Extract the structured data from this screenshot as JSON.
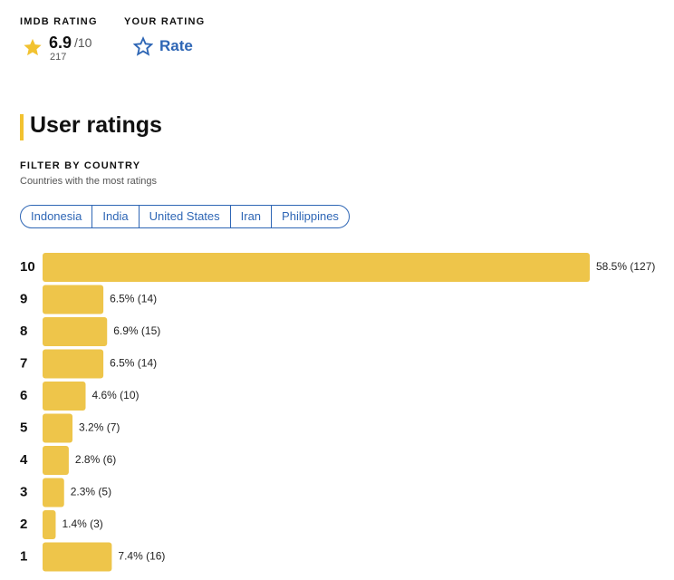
{
  "header": {
    "imdb_rating_label": "IMDb RATING",
    "rating": 6.9,
    "rating_max": "/10",
    "rating_count": 217,
    "your_rating_label": "YOUR RATING",
    "rate": "Rate"
  },
  "section": {
    "title": "User ratings",
    "filter_label": "FILTER BY COUNTRY",
    "filter_hint": "Countries with the most ratings",
    "countries": [
      "Indonesia",
      "India",
      "United States",
      "Iran",
      "Philippines"
    ]
  },
  "chart_data": {
    "type": "bar",
    "orientation": "horizontal",
    "color": "#eec54a",
    "categories": [
      "10",
      "9",
      "8",
      "7",
      "6",
      "5",
      "4",
      "3",
      "2",
      "1"
    ],
    "values": [
      58.5,
      6.5,
      6.9,
      6.5,
      4.6,
      3.2,
      2.8,
      2.3,
      1.4,
      7.4
    ],
    "value_labels": [
      "58.5% (127)",
      "6.5% (14)",
      "6.9% (15)",
      "6.5% (14)",
      "4.6% (10)",
      "3.2% (7)",
      "2.8% (6)",
      "2.3% (5)",
      "1.4% (3)",
      "7.4% (16)"
    ]
  }
}
